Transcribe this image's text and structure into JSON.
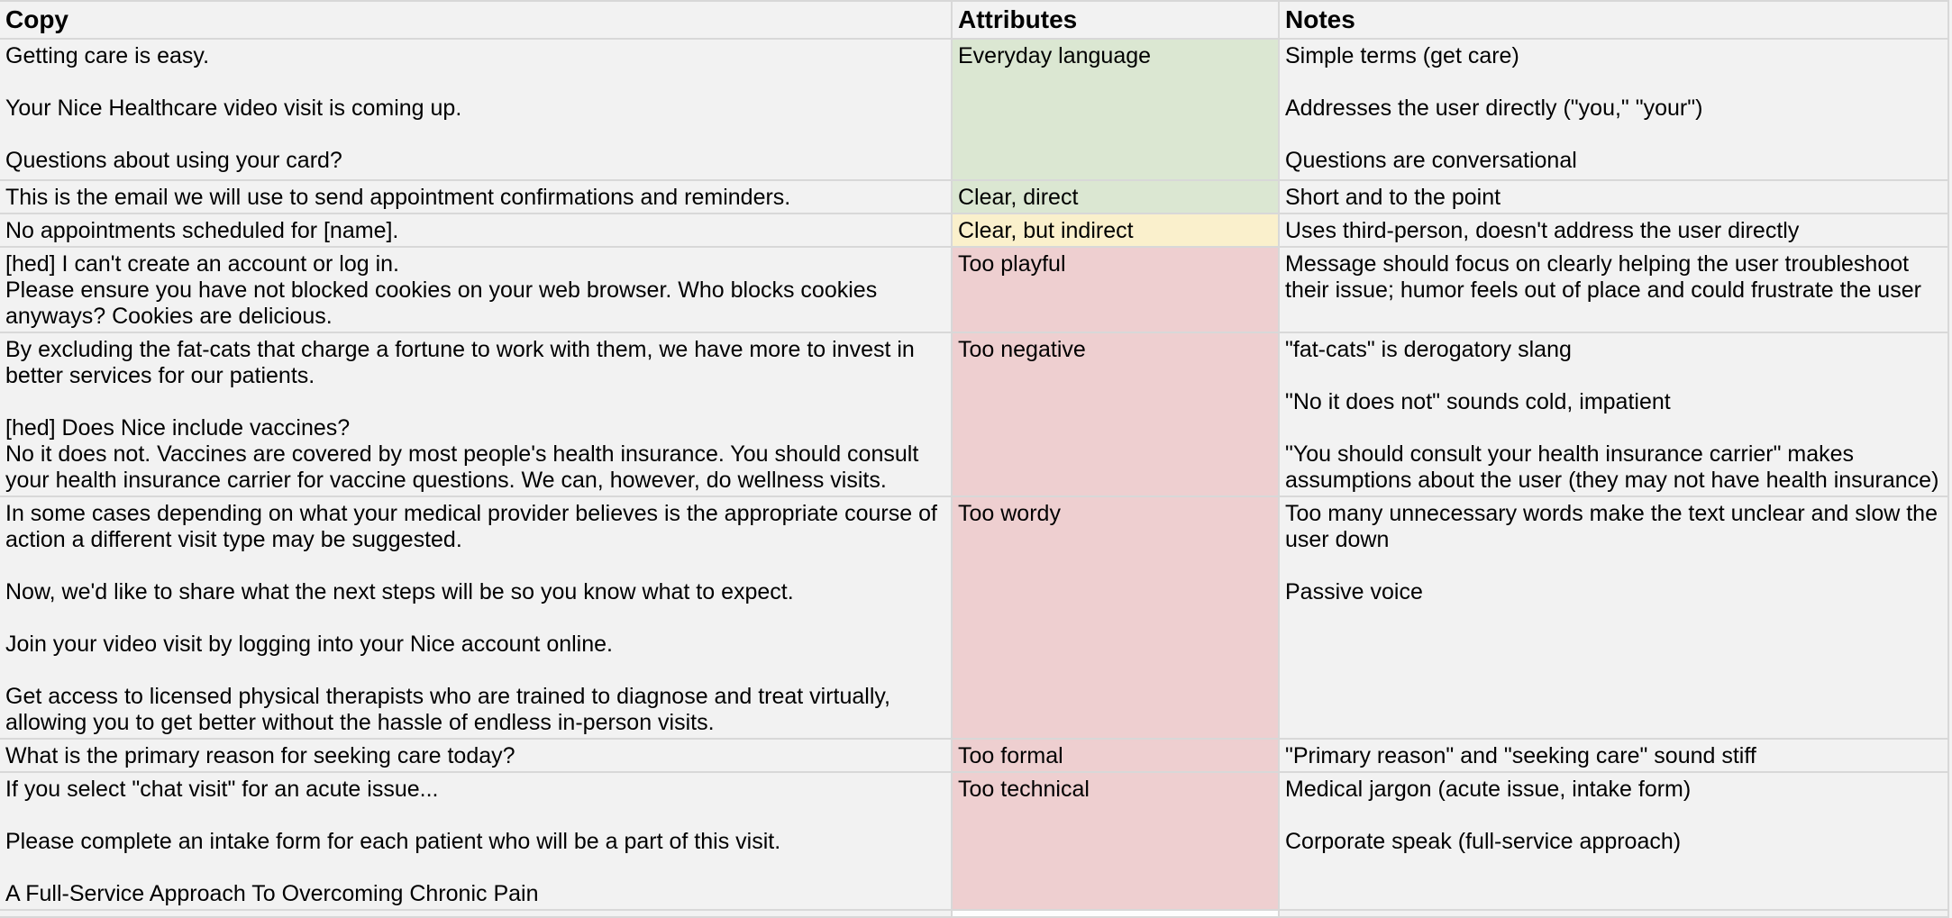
{
  "table": {
    "columns": [
      {
        "label": "Copy"
      },
      {
        "label": "Attributes"
      },
      {
        "label": "Notes"
      }
    ],
    "rating_colors": {
      "good": "#dbe7d2",
      "neutral": "#faf0cc",
      "bad": "#eecfd0",
      "none": "#fdfdfd"
    },
    "rows": [
      {
        "copy": "Getting care is easy.\n\nYour Nice Healthcare video visit is coming up.\n\nQuestions about using your card?",
        "attribute": "Everyday language",
        "rating": "good",
        "notes": "Simple terms (get care)\n\nAddresses the user directly (\"you,\" \"your\")\n\nQuestions are conversational"
      },
      {
        "copy": "This is the email we will use to send appointment confirmations and reminders.",
        "attribute": "Clear, direct",
        "rating": "good",
        "notes": "Short and to the point"
      },
      {
        "copy": "No appointments scheduled for [name].",
        "attribute": "Clear, but indirect",
        "rating": "neutral",
        "notes": "Uses third-person, doesn't address the user directly"
      },
      {
        "copy": "[hed] I can't create an account or log in.\nPlease ensure you have not blocked cookies on your web browser. Who blocks cookies anyways? Cookies are delicious.",
        "attribute": "Too playful",
        "rating": "bad",
        "notes": "Message should focus on clearly helping the user troubleshoot their issue; humor feels out of place and could frustrate the user"
      },
      {
        "copy": "By excluding the fat-cats that charge a fortune to work with them, we have more to invest in better services for our patients.\n\n[hed] Does Nice include vaccines?\nNo it does not. Vaccines are covered by most people's health insurance. You should consult your health insurance carrier for vaccine questions. We can, however, do wellness visits.",
        "attribute": "Too negative",
        "rating": "bad",
        "notes": "\"fat-cats\" is derogatory slang\n\n\"No it does not\" sounds cold, impatient\n\n\"You should consult your health insurance carrier\" makes assumptions about the user (they may not have health insurance)"
      },
      {
        "copy": "In some cases depending on what your medical provider believes is the appropriate course of action a different visit type may be suggested.\n\nNow, we'd like to share what the next steps will be so you know what to expect.\n\nJoin your video visit by logging into your Nice account online.\n\nGet access to licensed physical therapists who are trained to diagnose and treat virtually, allowing you to get better without the hassle of endless in-person visits.",
        "attribute": "Too wordy",
        "rating": "bad",
        "notes": "Too many unnecessary words make the text unclear and slow the user down\n\nPassive voice"
      },
      {
        "copy": "What is the primary reason for seeking care today?",
        "attribute": "Too formal",
        "rating": "bad",
        "notes": "\"Primary reason\" and \"seeking care\" sound stiff"
      },
      {
        "copy": "If you select \"chat visit\" for an acute issue...\n\nPlease complete an intake form for each patient who will be a part of this visit.\n\nA Full-Service Approach To Overcoming Chronic Pain",
        "attribute": "Too technical",
        "rating": "bad",
        "notes": "Medical jargon (acute issue, intake form)\n\nCorporate speak (full-service approach)"
      },
      {
        "copy": "",
        "attribute": "",
        "rating": "none",
        "notes": ""
      }
    ]
  }
}
